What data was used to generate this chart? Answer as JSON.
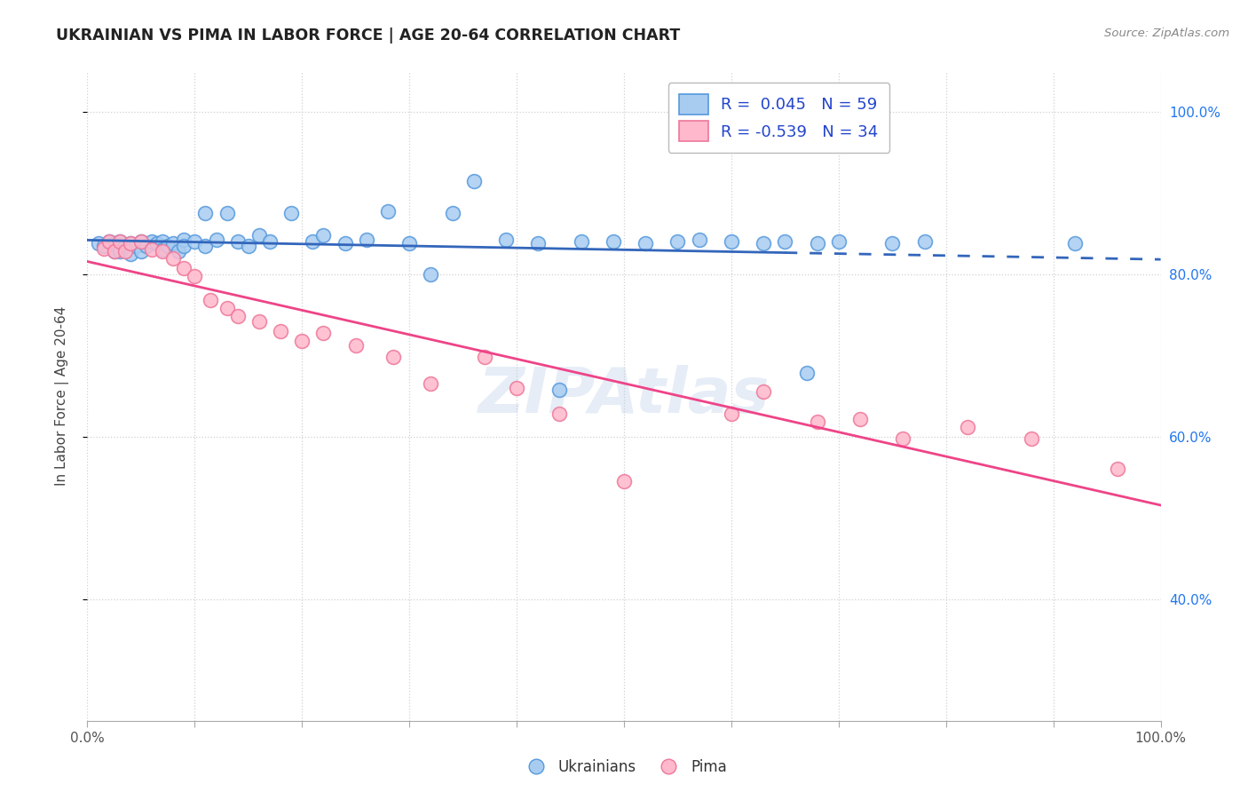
{
  "title": "UKRAINIAN VS PIMA IN LABOR FORCE | AGE 20-64 CORRELATION CHART",
  "source_text": "Source: ZipAtlas.com",
  "ylabel": "In Labor Force | Age 20-64",
  "xlim": [
    0.0,
    1.0
  ],
  "ylim": [
    0.25,
    1.05
  ],
  "blue_R": 0.045,
  "blue_N": 59,
  "pink_R": -0.539,
  "pink_N": 34,
  "blue_color_face": "#a8ccf0",
  "blue_color_edge": "#5599dd",
  "pink_color_face": "#ffb8cc",
  "pink_color_edge": "#ee7799",
  "blue_line_color": "#3366bb",
  "pink_line_color": "#ee4488",
  "background_color": "#ffffff",
  "blue_scatter_x": [
    0.01,
    0.015,
    0.02,
    0.025,
    0.025,
    0.03,
    0.03,
    0.035,
    0.04,
    0.04,
    0.045,
    0.05,
    0.05,
    0.055,
    0.06,
    0.065,
    0.07,
    0.07,
    0.075,
    0.08,
    0.085,
    0.09,
    0.09,
    0.1,
    0.11,
    0.11,
    0.12,
    0.13,
    0.14,
    0.15,
    0.16,
    0.17,
    0.19,
    0.21,
    0.22,
    0.24,
    0.26,
    0.28,
    0.3,
    0.32,
    0.34,
    0.36,
    0.39,
    0.42,
    0.44,
    0.46,
    0.49,
    0.52,
    0.55,
    0.57,
    0.6,
    0.63,
    0.65,
    0.67,
    0.68,
    0.7,
    0.75,
    0.78,
    0.92
  ],
  "blue_scatter_y": [
    0.838,
    0.835,
    0.84,
    0.838,
    0.828,
    0.84,
    0.828,
    0.835,
    0.838,
    0.825,
    0.835,
    0.84,
    0.828,
    0.835,
    0.84,
    0.838,
    0.84,
    0.83,
    0.835,
    0.838,
    0.828,
    0.842,
    0.835,
    0.84,
    0.875,
    0.835,
    0.842,
    0.875,
    0.84,
    0.835,
    0.848,
    0.84,
    0.875,
    0.84,
    0.848,
    0.838,
    0.842,
    0.878,
    0.838,
    0.8,
    0.875,
    0.915,
    0.842,
    0.838,
    0.658,
    0.84,
    0.84,
    0.838,
    0.84,
    0.842,
    0.84,
    0.838,
    0.84,
    0.678,
    0.838,
    0.84,
    0.838,
    0.84,
    0.838
  ],
  "pink_scatter_x": [
    0.015,
    0.02,
    0.025,
    0.03,
    0.035,
    0.04,
    0.05,
    0.06,
    0.07,
    0.08,
    0.09,
    0.1,
    0.115,
    0.13,
    0.14,
    0.16,
    0.18,
    0.2,
    0.22,
    0.25,
    0.285,
    0.32,
    0.37,
    0.4,
    0.44,
    0.5,
    0.6,
    0.63,
    0.68,
    0.72,
    0.76,
    0.82,
    0.88,
    0.96
  ],
  "pink_scatter_y": [
    0.832,
    0.84,
    0.828,
    0.84,
    0.828,
    0.838,
    0.84,
    0.83,
    0.828,
    0.82,
    0.808,
    0.798,
    0.768,
    0.758,
    0.748,
    0.742,
    0.73,
    0.718,
    0.728,
    0.712,
    0.698,
    0.665,
    0.698,
    0.66,
    0.628,
    0.545,
    0.628,
    0.655,
    0.618,
    0.622,
    0.598,
    0.612,
    0.598,
    0.56
  ]
}
